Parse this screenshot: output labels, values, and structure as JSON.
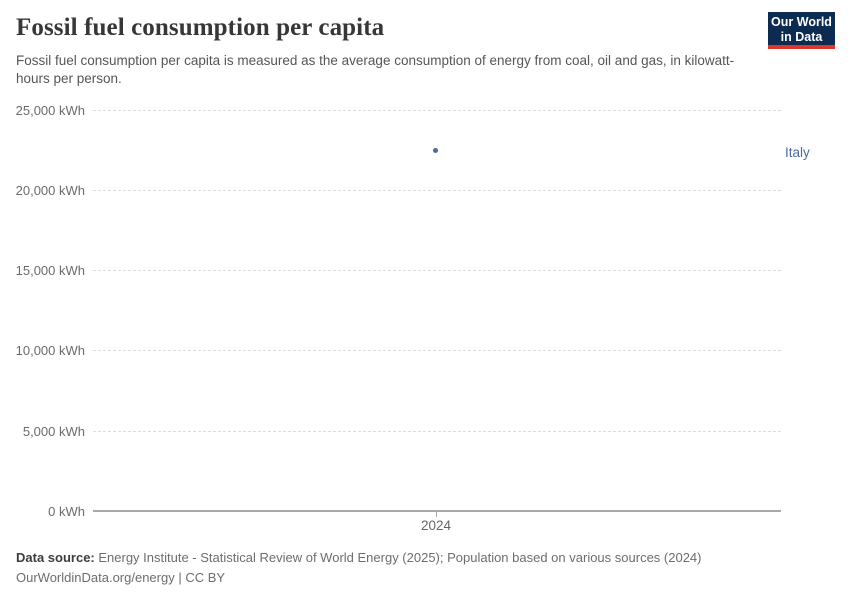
{
  "header": {
    "title": "Fossil fuel consumption per capita",
    "subtitle": "Fossil fuel consumption per capita is measured as the average consumption of energy from coal, oil and gas, in kilowatt-hours per person."
  },
  "logo": {
    "line1": "Our World",
    "line2": "in Data",
    "bg_color": "#0d2b50",
    "accent_color": "#dc352c"
  },
  "chart_data": {
    "type": "scatter",
    "title": "Fossil fuel consumption per capita",
    "xlabel": "",
    "ylabel": "kWh",
    "ylim": [
      0,
      25000
    ],
    "x": [
      2024
    ],
    "series": [
      {
        "name": "Italy",
        "values": [
          22400
        ],
        "color": "#4c6a9c"
      }
    ],
    "ytick_labels": [
      "25,000 kWh",
      "20,000 kWh",
      "15,000 kWh",
      "10,000 kWh",
      "5,000 kWh",
      "0 kWh"
    ],
    "ytick_values": [
      25000,
      20000,
      15000,
      10000,
      5000,
      0
    ],
    "xtick_labels": [
      "2024"
    ],
    "grid": "horizontal-dashed",
    "legend_position": "right-of-plot"
  },
  "footer": {
    "datasource_label": "Data source:",
    "datasource_text": " Energy Institute - Statistical Review of World Energy (2025); Population based on various sources (2024)",
    "line2_url": "OurWorldinData.org/energy",
    "line2_separator": " | ",
    "line2_license": "CC BY"
  }
}
